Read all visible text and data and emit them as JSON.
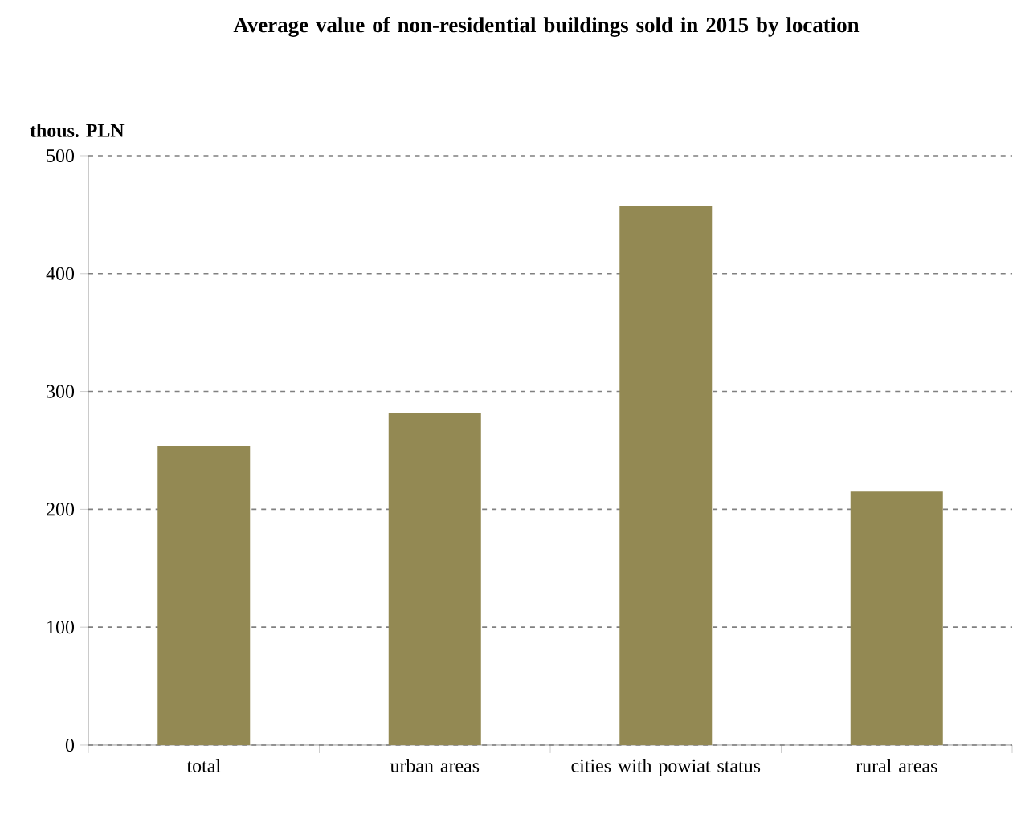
{
  "chart_data": {
    "type": "bar",
    "title": "Average value of non-residential buildings sold in 2015 by location",
    "ylabel": "thous. PLN",
    "categories": [
      "total",
      "urban areas",
      "cities with powiat status",
      "rural areas"
    ],
    "values": [
      254,
      282,
      457,
      215
    ],
    "color": "#938953",
    "ylim": [
      0,
      500
    ],
    "yticks": [
      0,
      100,
      200,
      300,
      400,
      500
    ],
    "grid": "y"
  }
}
